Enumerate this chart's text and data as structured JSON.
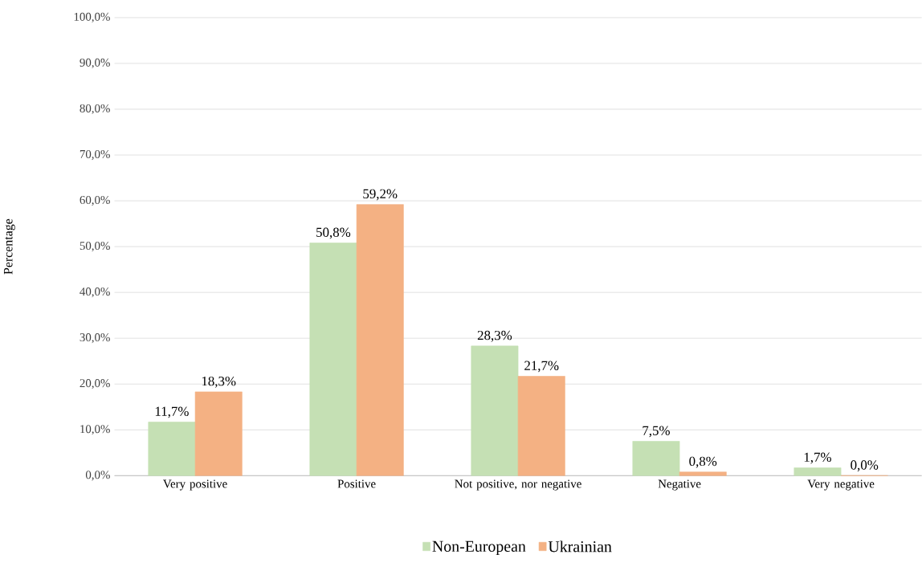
{
  "chart_data": {
    "type": "bar",
    "ylabel": "Percentage",
    "categories": [
      "Very positive",
      "Positive",
      "Not positive, nor negative",
      "Negative",
      "Very negative"
    ],
    "series": [
      {
        "name": "Non-European",
        "color": "#c5e0b4",
        "values": [
          11.7,
          50.8,
          28.3,
          7.5,
          1.7
        ],
        "value_labels": [
          "11,7%",
          "50,8%",
          "28,3%",
          "7,5%",
          "1,7%"
        ]
      },
      {
        "name": "Ukrainian",
        "color": "#f4b183",
        "values": [
          18.3,
          59.2,
          21.7,
          0.8,
          0.0
        ],
        "value_labels": [
          "18,3%",
          "59,2%",
          "21,7%",
          "0,8%",
          "0,0%"
        ]
      }
    ],
    "ylim": [
      0,
      100
    ],
    "yticks": [
      {
        "value": 0,
        "label": "0,0%"
      },
      {
        "value": 10,
        "label": "10,0%"
      },
      {
        "value": 20,
        "label": "20,0%"
      },
      {
        "value": 30,
        "label": "30,0%"
      },
      {
        "value": 40,
        "label": "40,0%"
      },
      {
        "value": 50,
        "label": "50,0%"
      },
      {
        "value": 60,
        "label": "60,0%"
      },
      {
        "value": 70,
        "label": "70,0%"
      },
      {
        "value": 80,
        "label": "80,0%"
      },
      {
        "value": 90,
        "label": "90,0%"
      },
      {
        "value": 100,
        "label": "100,0%"
      }
    ],
    "grid": "y",
    "legend": "bottom"
  }
}
